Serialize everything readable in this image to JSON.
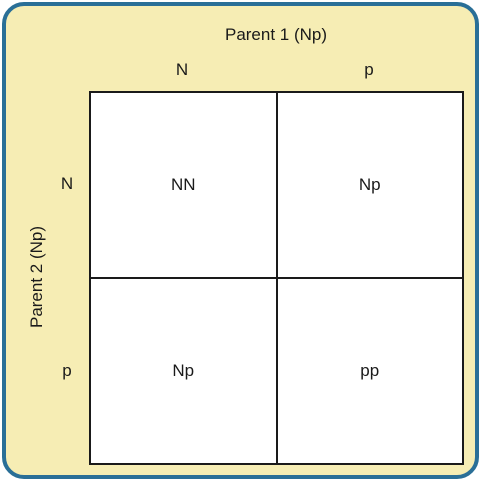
{
  "parent1": {
    "title": "Parent 1 (Np)",
    "alleles": [
      "N",
      "p"
    ]
  },
  "parent2": {
    "title": "Parent 2 (Np)",
    "alleles": [
      "N",
      "p"
    ]
  },
  "cells": [
    [
      "NN",
      "Np"
    ],
    [
      "Np",
      "pp"
    ]
  ],
  "colors": {
    "background": "#f6edb4",
    "border": "#2a6f97",
    "lines": "#1a1a1a"
  }
}
